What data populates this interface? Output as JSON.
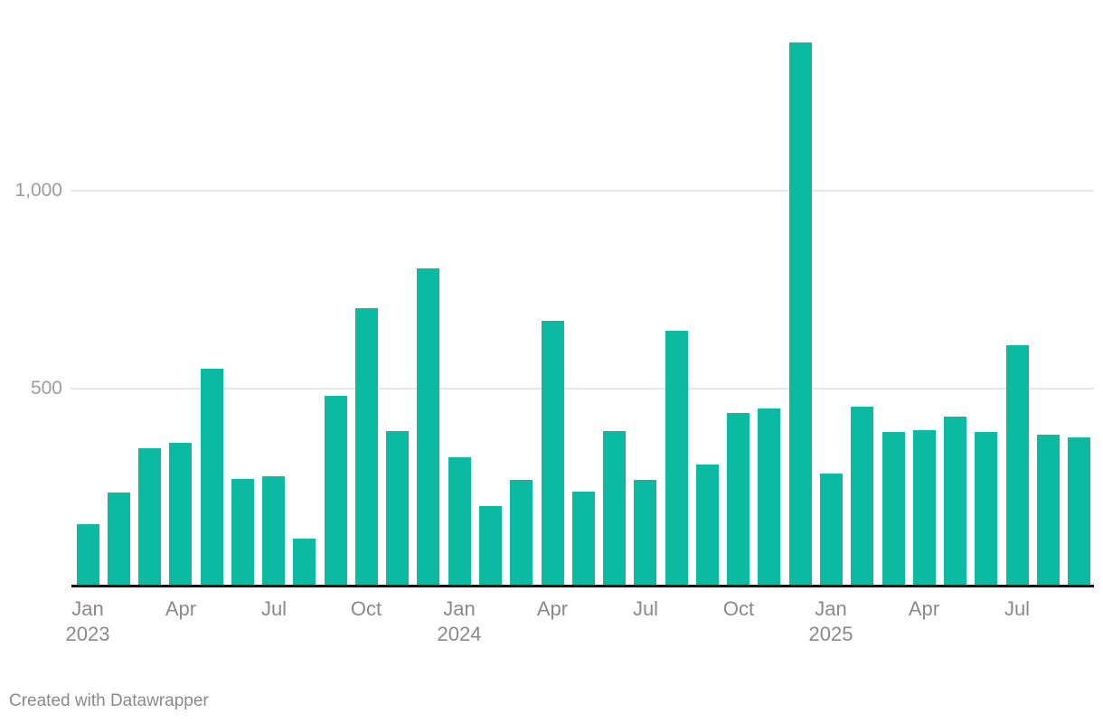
{
  "footer": {
    "attribution": "Created with Datawrapper"
  },
  "colors": {
    "bar": "#0cbaa2",
    "axis_line": "#111111",
    "gridline": "#e6e6e6",
    "y_tick_label": "#9c9c9c",
    "x_tick_label": "#8a8a8a",
    "footer_text": "#8a8a8a",
    "background": "#ffffff"
  },
  "chart_data": {
    "type": "bar",
    "title": "",
    "xlabel": "",
    "ylabel": "",
    "legend": {
      "visible": false
    },
    "grid": "horizontal",
    "categories": [
      "Jan 2023",
      "Feb 2023",
      "Mar 2023",
      "Apr 2023",
      "May 2023",
      "Jun 2023",
      "Jul 2023",
      "Aug 2023",
      "Sep 2023",
      "Oct 2023",
      "Nov 2023",
      "Dec 2023",
      "Jan 2024",
      "Feb 2024",
      "Mar 2024",
      "Apr 2024",
      "May 2024",
      "Jun 2024",
      "Jul 2024",
      "Aug 2024",
      "Sep 2024",
      "Oct 2024",
      "Nov 2024",
      "Dec 2024",
      "Jan 2025",
      "Feb 2025",
      "Mar 2025",
      "Apr 2025",
      "May 2025",
      "Jun 2025",
      "Jul 2025",
      "Aug 2025",
      "Sep 2025"
    ],
    "values": [
      155,
      235,
      347,
      361,
      550,
      270,
      277,
      120,
      481,
      703,
      391,
      804,
      326,
      201,
      268,
      671,
      238,
      391,
      268,
      646,
      307,
      437,
      449,
      1375,
      284,
      452,
      388,
      394,
      429,
      390,
      608,
      382,
      375
    ],
    "y_axis": {
      "range": [
        0,
        1483
      ],
      "ticks": [
        {
          "value": 500,
          "label": "500"
        },
        {
          "value": 1000,
          "label": "1,000"
        }
      ]
    },
    "x_axis": {
      "ticks": [
        {
          "index": 0,
          "month": "Jan",
          "year": "2023"
        },
        {
          "index": 3,
          "month": "Apr",
          "year": ""
        },
        {
          "index": 6,
          "month": "Jul",
          "year": ""
        },
        {
          "index": 9,
          "month": "Oct",
          "year": ""
        },
        {
          "index": 12,
          "month": "Jan",
          "year": "2024"
        },
        {
          "index": 15,
          "month": "Apr",
          "year": ""
        },
        {
          "index": 18,
          "month": "Jul",
          "year": ""
        },
        {
          "index": 21,
          "month": "Oct",
          "year": ""
        },
        {
          "index": 24,
          "month": "Jan",
          "year": "2025"
        },
        {
          "index": 27,
          "month": "Apr",
          "year": ""
        },
        {
          "index": 30,
          "month": "Jul",
          "year": ""
        }
      ]
    }
  }
}
